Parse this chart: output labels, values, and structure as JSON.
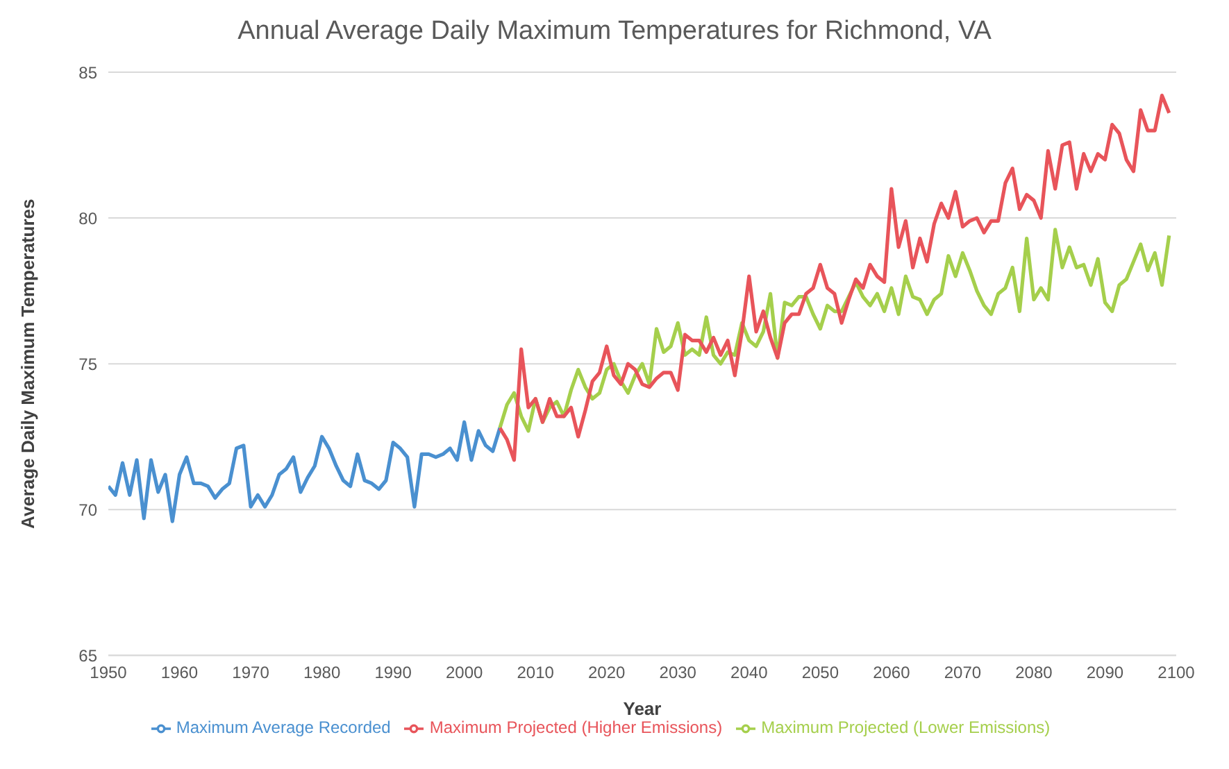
{
  "chart_data": {
    "type": "line",
    "title": "Annual Average Daily Maximum Temperatures for Richmond, VA",
    "xlabel": "Year",
    "ylabel": "Average Daily Maximum Temperatures",
    "xlim": [
      1950,
      2100
    ],
    "xticks": [
      1950,
      1960,
      1970,
      1980,
      1990,
      2000,
      2010,
      2020,
      2030,
      2040,
      2050,
      2060,
      2070,
      2080,
      2090,
      2100
    ],
    "ylim": [
      65,
      85
    ],
    "yticks": [
      65,
      70,
      75,
      80,
      85
    ],
    "grid": "y",
    "legend": "bottom",
    "marker": "none",
    "line_style": "solid",
    "series": [
      {
        "name": "Maximum Average Recorded",
        "color": "#4a90d0",
        "x": [
          1950,
          1951,
          1952,
          1953,
          1954,
          1955,
          1956,
          1957,
          1958,
          1959,
          1960,
          1961,
          1962,
          1963,
          1964,
          1965,
          1966,
          1967,
          1968,
          1969,
          1970,
          1971,
          1972,
          1973,
          1974,
          1975,
          1976,
          1977,
          1978,
          1979,
          1980,
          1981,
          1982,
          1983,
          1984,
          1985,
          1986,
          1987,
          1988,
          1989,
          1990,
          1991,
          1992,
          1993,
          1994,
          1995,
          1996,
          1997,
          1998,
          1999,
          2000,
          2001,
          2002,
          2003,
          2004,
          2005
        ],
        "values": [
          70.8,
          70.5,
          71.6,
          70.5,
          71.7,
          69.7,
          71.7,
          70.6,
          71.2,
          69.6,
          71.2,
          71.8,
          70.9,
          70.9,
          70.8,
          70.4,
          70.7,
          70.9,
          72.1,
          72.2,
          70.1,
          70.5,
          70.1,
          70.5,
          71.2,
          71.4,
          71.8,
          70.6,
          71.1,
          71.5,
          72.5,
          72.1,
          71.5,
          71.0,
          70.8,
          71.9,
          71.0,
          70.9,
          70.7,
          71.0,
          72.3,
          72.1,
          71.8,
          70.1,
          71.9,
          71.9,
          71.8,
          71.9,
          72.1,
          71.7,
          73.0,
          71.7,
          72.7,
          72.2,
          72.0,
          72.8
        ]
      },
      {
        "name": "Maximum Projected (Lower Emissions)",
        "color": "#a5cf4c",
        "x": [
          2005,
          2006,
          2007,
          2008,
          2009,
          2010,
          2011,
          2012,
          2013,
          2014,
          2015,
          2016,
          2017,
          2018,
          2019,
          2020,
          2021,
          2022,
          2023,
          2024,
          2025,
          2026,
          2027,
          2028,
          2029,
          2030,
          2031,
          2032,
          2033,
          2034,
          2035,
          2036,
          2037,
          2038,
          2039,
          2040,
          2041,
          2042,
          2043,
          2044,
          2045,
          2046,
          2047,
          2048,
          2049,
          2050,
          2051,
          2052,
          2053,
          2054,
          2055,
          2056,
          2057,
          2058,
          2059,
          2060,
          2061,
          2062,
          2063,
          2064,
          2065,
          2066,
          2067,
          2068,
          2069,
          2070,
          2071,
          2072,
          2073,
          2074,
          2075,
          2076,
          2077,
          2078,
          2079,
          2080,
          2081,
          2082,
          2083,
          2084,
          2085,
          2086,
          2087,
          2088,
          2089,
          2090,
          2091,
          2092,
          2093,
          2094,
          2095,
          2096,
          2097,
          2098,
          2099
        ],
        "values": [
          72.8,
          73.6,
          74.0,
          73.2,
          72.7,
          73.8,
          73.0,
          73.5,
          73.7,
          73.2,
          74.1,
          74.8,
          74.2,
          73.8,
          74.0,
          74.8,
          75.0,
          74.4,
          74.0,
          74.6,
          75.0,
          74.3,
          76.2,
          75.4,
          75.6,
          76.4,
          75.3,
          75.5,
          75.3,
          76.6,
          75.3,
          75.0,
          75.4,
          75.3,
          76.4,
          75.8,
          75.6,
          76.1,
          77.4,
          75.2,
          77.1,
          77.0,
          77.3,
          77.3,
          76.7,
          76.2,
          77.0,
          76.8,
          76.8,
          77.3,
          77.8,
          77.3,
          77.0,
          77.4,
          76.8,
          77.6,
          76.7,
          78.0,
          77.3,
          77.2,
          76.7,
          77.2,
          77.4,
          78.7,
          78.0,
          78.8,
          78.2,
          77.5,
          77.0,
          76.7,
          77.4,
          77.6,
          78.3,
          76.8,
          79.3,
          77.2,
          77.6,
          77.2,
          79.6,
          78.3,
          79.0,
          78.3,
          78.4,
          77.7,
          78.6,
          77.1,
          76.8,
          77.7,
          77.9,
          78.5,
          79.1,
          78.2,
          78.8,
          77.7,
          79.4
        ]
      },
      {
        "name": "Maximum Projected (Higher Emissions)",
        "color": "#e8545a",
        "x": [
          2005,
          2006,
          2007,
          2008,
          2009,
          2010,
          2011,
          2012,
          2013,
          2014,
          2015,
          2016,
          2017,
          2018,
          2019,
          2020,
          2021,
          2022,
          2023,
          2024,
          2025,
          2026,
          2027,
          2028,
          2029,
          2030,
          2031,
          2032,
          2033,
          2034,
          2035,
          2036,
          2037,
          2038,
          2039,
          2040,
          2041,
          2042,
          2043,
          2044,
          2045,
          2046,
          2047,
          2048,
          2049,
          2050,
          2051,
          2052,
          2053,
          2054,
          2055,
          2056,
          2057,
          2058,
          2059,
          2060,
          2061,
          2062,
          2063,
          2064,
          2065,
          2066,
          2067,
          2068,
          2069,
          2070,
          2071,
          2072,
          2073,
          2074,
          2075,
          2076,
          2077,
          2078,
          2079,
          2080,
          2081,
          2082,
          2083,
          2084,
          2085,
          2086,
          2087,
          2088,
          2089,
          2090,
          2091,
          2092,
          2093,
          2094,
          2095,
          2096,
          2097,
          2098,
          2099
        ],
        "values": [
          72.8,
          72.4,
          71.7,
          75.5,
          73.5,
          73.8,
          73.0,
          73.8,
          73.2,
          73.2,
          73.5,
          72.5,
          73.4,
          74.4,
          74.7,
          75.6,
          74.6,
          74.3,
          75.0,
          74.8,
          74.3,
          74.2,
          74.5,
          74.7,
          74.7,
          74.1,
          76.0,
          75.8,
          75.8,
          75.4,
          75.9,
          75.3,
          75.8,
          74.6,
          76.1,
          78.0,
          76.1,
          76.8,
          75.9,
          75.2,
          76.4,
          76.7,
          76.7,
          77.4,
          77.6,
          78.4,
          77.6,
          77.4,
          76.4,
          77.2,
          77.9,
          77.6,
          78.4,
          78.0,
          77.8,
          81.0,
          79.0,
          79.9,
          78.3,
          79.3,
          78.5,
          79.8,
          80.5,
          80.0,
          80.9,
          79.7,
          79.9,
          80.0,
          79.5,
          79.9,
          79.9,
          81.2,
          81.7,
          80.3,
          80.8,
          80.6,
          80.0,
          82.3,
          81.0,
          82.5,
          82.6,
          81.0,
          82.2,
          81.6,
          82.2,
          82.0,
          83.2,
          82.9,
          82.0,
          81.6,
          83.7,
          83.0,
          83.0,
          84.2,
          83.6
        ]
      }
    ]
  }
}
